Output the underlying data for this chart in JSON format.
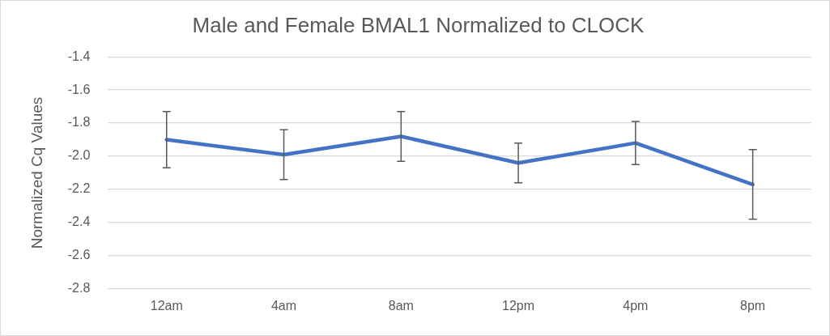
{
  "chart_data": {
    "type": "line",
    "title": "Male and Female BMAL1 Normalized to CLOCK",
    "ylabel": "Normalized Cq Values",
    "categories": [
      "12am",
      "4am",
      "8am",
      "12pm",
      "4pm",
      "8pm"
    ],
    "series": [
      {
        "color": "#4472c4",
        "values": [
          -1.9,
          -1.99,
          -1.88,
          -2.04,
          -1.92,
          -2.17
        ],
        "errors": [
          0.17,
          0.15,
          0.15,
          0.12,
          0.13,
          0.21
        ]
      }
    ],
    "ylim": [
      -2.8,
      -1.4
    ],
    "yticks": [
      -1.4,
      -1.6,
      -1.8,
      {
        "value": -2.0,
        "label": "-2.0"
      },
      -2.2,
      -2.4,
      -2.6,
      -2.8
    ],
    "grid": "y",
    "legend": false,
    "marker": "none",
    "line_style": "solid"
  }
}
